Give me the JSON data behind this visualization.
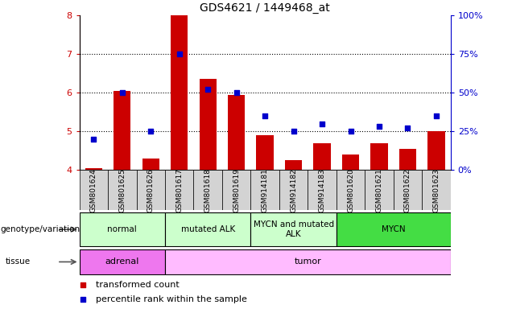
{
  "title": "GDS4621 / 1449468_at",
  "samples": [
    "GSM801624",
    "GSM801625",
    "GSM801626",
    "GSM801617",
    "GSM801618",
    "GSM801619",
    "GSM914181",
    "GSM914182",
    "GSM914183",
    "GSM801620",
    "GSM801621",
    "GSM801622",
    "GSM801623"
  ],
  "red_values": [
    4.05,
    6.05,
    4.3,
    8.0,
    6.35,
    5.95,
    4.9,
    4.25,
    4.7,
    4.4,
    4.7,
    4.55,
    5.0
  ],
  "blue_values": [
    20,
    50,
    25,
    75,
    52,
    50,
    35,
    25,
    30,
    25,
    28,
    27,
    35
  ],
  "ylim_left": [
    4,
    8
  ],
  "ylim_right": [
    0,
    100
  ],
  "yticks_left": [
    4,
    5,
    6,
    7,
    8
  ],
  "yticks_right": [
    0,
    25,
    50,
    75,
    100
  ],
  "ytick_labels_right": [
    "0%",
    "25%",
    "50%",
    "75%",
    "100%"
  ],
  "genotype_groups": [
    {
      "label": "normal",
      "start": 0,
      "end": 3,
      "color": "#CCFFCC"
    },
    {
      "label": "mutated ALK",
      "start": 3,
      "end": 6,
      "color": "#CCFFCC"
    },
    {
      "label": "MYCN and mutated\nALK",
      "start": 6,
      "end": 9,
      "color": "#CCFFCC"
    },
    {
      "label": "MYCN",
      "start": 9,
      "end": 13,
      "color": "#44DD44"
    }
  ],
  "tissue_groups": [
    {
      "label": "adrenal",
      "start": 0,
      "end": 3,
      "color": "#EE77EE"
    },
    {
      "label": "tumor",
      "start": 3,
      "end": 13,
      "color": "#FFBBFF"
    }
  ],
  "left_label_genotype": "genotype/variation",
  "left_label_tissue": "tissue",
  "legend_red": "transformed count",
  "legend_blue": "percentile rank within the sample",
  "red_color": "#CC0000",
  "blue_color": "#0000CC",
  "bar_base": 4.0,
  "bar_width": 0.6,
  "dot_size": 25
}
